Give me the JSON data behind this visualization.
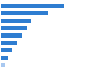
{
  "values": [
    24200,
    18100,
    11500,
    9800,
    8100,
    6200,
    4400,
    2800,
    1600
  ],
  "bar_color": "#2e7dd1",
  "last_bar_color": "#a8c8f0",
  "background_color": "#ffffff",
  "grid_color": "#dddddd",
  "figsize": [
    1.0,
    0.71
  ],
  "dpi": 100,
  "bar_height": 0.55,
  "xlim_factor": 1.55
}
